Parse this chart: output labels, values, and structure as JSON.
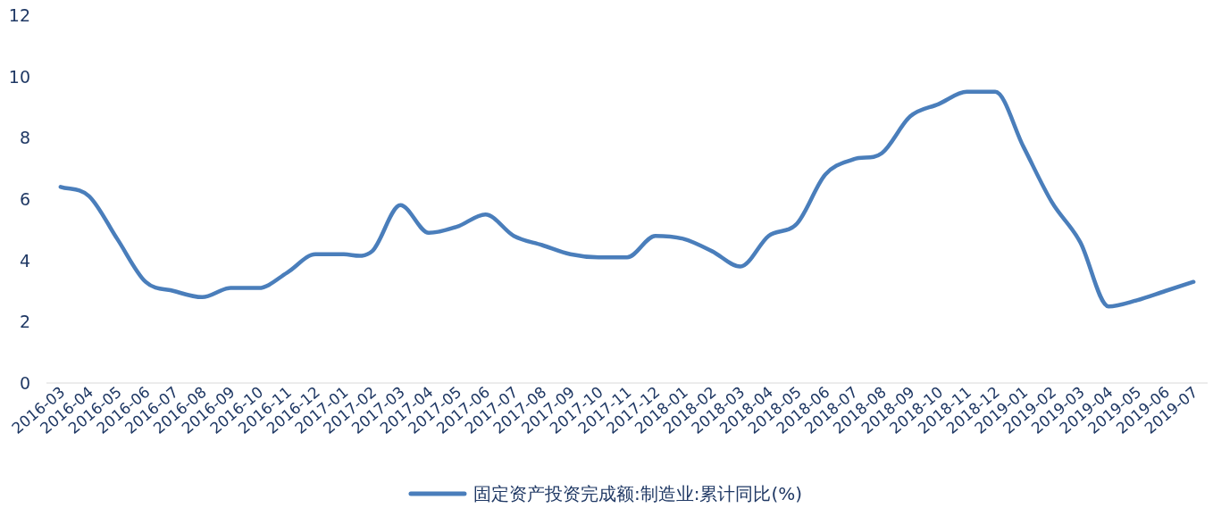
{
  "chart_data": {
    "type": "line",
    "categories": [
      "2016-03",
      "2016-04",
      "2016-05",
      "2016-06",
      "2016-07",
      "2016-08",
      "2016-09",
      "2016-10",
      "2016-11",
      "2016-12",
      "2017-01",
      "2017-02",
      "2017-03",
      "2017-04",
      "2017-05",
      "2017-06",
      "2017-07",
      "2017-08",
      "2017-09",
      "2017-10",
      "2017-11",
      "2017-12",
      "2018-01",
      "2018-02",
      "2018-03",
      "2018-04",
      "2018-05",
      "2018-06",
      "2018-07",
      "2018-08",
      "2018-09",
      "2018-10",
      "2018-11",
      "2018-12",
      "2019-01",
      "2019-02",
      "2019-03",
      "2019-04",
      "2019-05",
      "2019-06",
      "2019-07"
    ],
    "series": [
      {
        "name": "固定资产投资完成额:制造业:累计同比(%)",
        "color": "#4a7ebb",
        "values": [
          6.4,
          6.1,
          4.7,
          3.3,
          3.0,
          2.8,
          3.1,
          3.1,
          3.6,
          4.2,
          4.2,
          4.3,
          5.8,
          4.9,
          5.1,
          5.5,
          4.8,
          4.5,
          4.2,
          4.1,
          4.1,
          4.8,
          4.7,
          4.3,
          3.8,
          4.8,
          5.2,
          6.8,
          7.3,
          7.5,
          8.7,
          9.1,
          9.5,
          9.5,
          7.7,
          5.9,
          4.6,
          2.5,
          2.7,
          3.0,
          3.3
        ]
      }
    ],
    "ylim": [
      0,
      12
    ],
    "yticks": [
      0,
      2,
      4,
      6,
      8,
      10,
      12
    ],
    "grid": false,
    "legend": "bottom"
  }
}
